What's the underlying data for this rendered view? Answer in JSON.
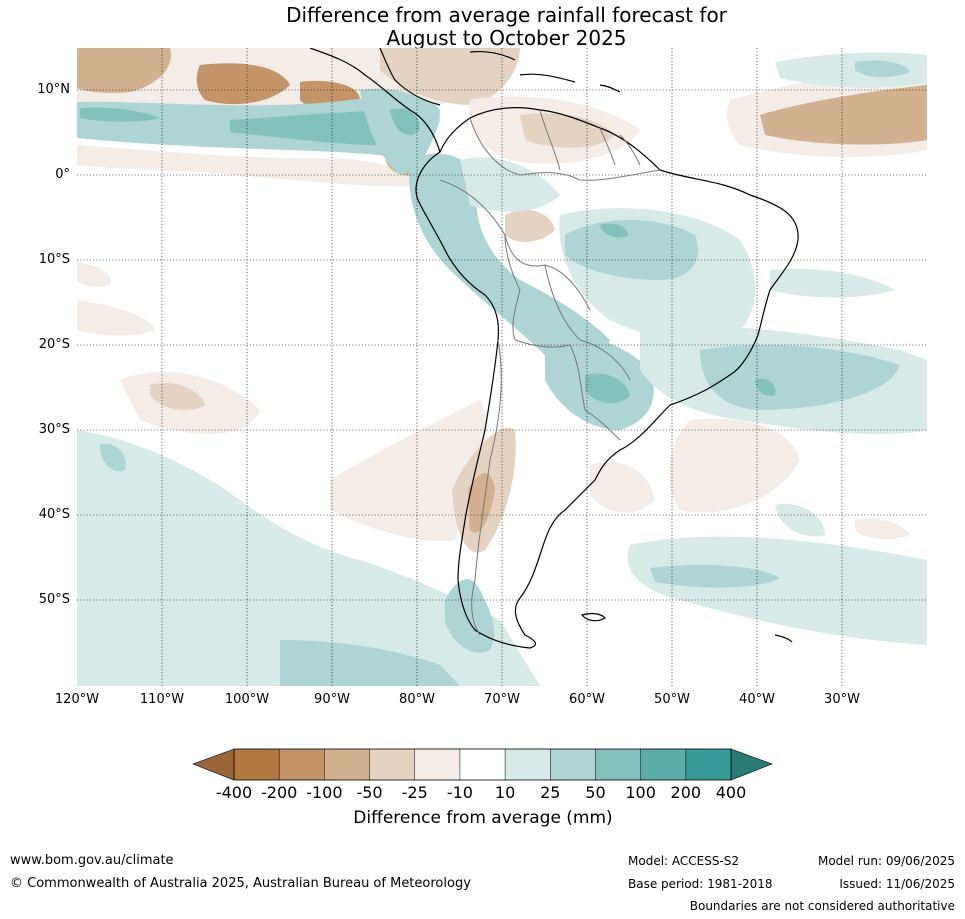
{
  "title_line1": "Difference from average rainfall forecast for",
  "title_line2": "August to October 2025",
  "lat_labels": [
    "10°N",
    "0°",
    "10°S",
    "20°S",
    "30°S",
    "40°S",
    "50°S"
  ],
  "lon_labels": [
    "120°W",
    "110°W",
    "100°W",
    "90°W",
    "80°W",
    "70°W",
    "60°W",
    "50°W",
    "40°W",
    "30°W"
  ],
  "colorbar": {
    "label": "Difference from average (mm)",
    "ticks": [
      "-400",
      "-200",
      "-100",
      "-50",
      "-25",
      "-10",
      "10",
      "25",
      "50",
      "100",
      "200",
      "400"
    ],
    "colors": [
      "#9a6537",
      "#b0773f",
      "#c29467",
      "#d3b08e",
      "#e6d2c1",
      "#f4ece6",
      "#ffffff",
      "#d6eae8",
      "#acd5d3",
      "#84c1be",
      "#5daeab",
      "#369a96",
      "#2b7a77"
    ]
  },
  "footer": {
    "website": "www.bom.gov.au/climate",
    "copyright": "© Commonwealth of Australia 2025, Australian Bureau of Meteorology",
    "model": "Model: ACCESS-S2",
    "base_period": "Base period: 1981-2018",
    "model_run": "Model run: 09/06/2025",
    "issued": "Issued: 11/06/2025",
    "disclaimer": "Boundaries are not considered authoritative"
  },
  "icons": {
    "left_arrow": "colorbar-low-extend-arrow",
    "right_arrow": "colorbar-high-extend-arrow"
  }
}
